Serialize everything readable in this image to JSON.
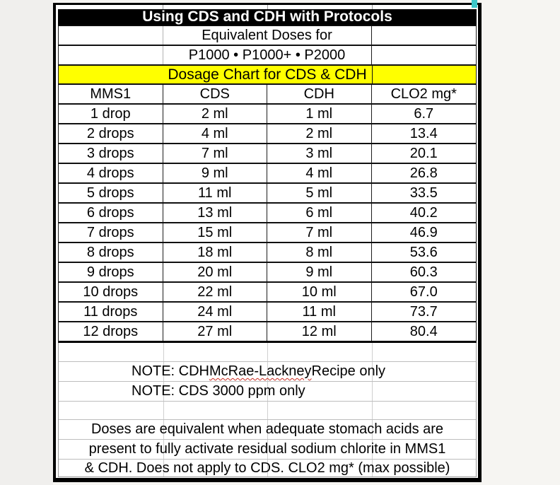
{
  "colors": {
    "title_bar_bg": "#000000",
    "title_bar_fg": "#ffffff",
    "banner_bg": "#ffff00",
    "spellcheck_squiggle": "#cc2a1f",
    "corner_marker": "#3cc7c9",
    "grid_line_gray": "#bdbdbd"
  },
  "chart_data": {
    "type": "table",
    "title": "Using CDS and CDH with Protocols",
    "subtitle_lines": [
      "Equivalent Doses for",
      "P1000 • P1000+ • P2000"
    ],
    "section_header": "Dosage Chart for CDS & CDH",
    "columns": [
      "MMS1",
      "CDS",
      "CDH",
      "CLO2 mg*"
    ],
    "rows": [
      [
        "1 drop",
        "2 ml",
        "1 ml",
        "6.7"
      ],
      [
        "2 drops",
        "4 ml",
        "2 ml",
        "13.4"
      ],
      [
        "3 drops",
        "7 ml",
        "3 ml",
        "20.1"
      ],
      [
        "4 drops",
        "9 ml",
        "4 ml",
        "26.8"
      ],
      [
        "5 drops",
        "11 ml",
        "5 ml",
        "33.5"
      ],
      [
        "6 drops",
        "13 ml",
        "6 ml",
        "40.2"
      ],
      [
        "7 drops",
        "15 ml",
        "7 ml",
        "46.9"
      ],
      [
        "8 drops",
        "18 ml",
        "8 ml",
        "53.6"
      ],
      [
        "9 drops",
        "20 ml",
        "9 ml",
        "60.3"
      ],
      [
        "10 drops",
        "22 ml",
        "10 ml",
        "67.0"
      ],
      [
        "11 drops",
        "24 ml",
        "11 ml",
        "73.7"
      ],
      [
        "12 drops",
        "27 ml",
        "12 ml",
        "80.4"
      ]
    ],
    "notes": {
      "note1_prefix": "NOTE: CDH ",
      "note1_underlined": "McRae-Lackney",
      "note1_suffix": " Recipe only",
      "note2": "NOTE: CDS 3000 ppm only"
    },
    "footer_lines": [
      "Doses are equivalent when adequate stomach acids are",
      "present to fully activate residual sodium chlorite in MMS1",
      "& CDH. Does not apply to CDS. CLO2 mg* (max possible)"
    ]
  }
}
